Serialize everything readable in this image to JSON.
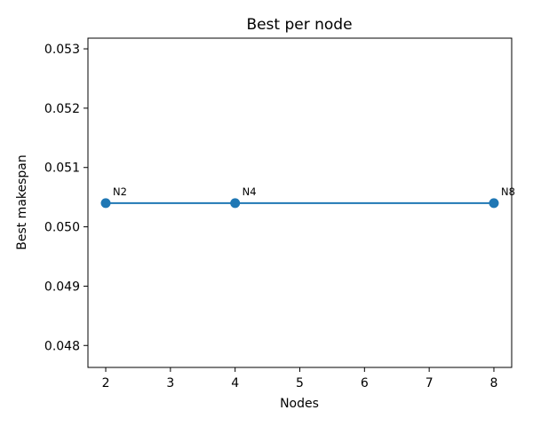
{
  "chart_data": {
    "type": "line",
    "title": "Best per node",
    "xlabel": "Nodes",
    "ylabel": "Best makespan",
    "xlim": [
      1.725,
      8.275
    ],
    "ylim": [
      0.04763,
      0.05318
    ],
    "xticks": [
      2,
      3,
      4,
      5,
      6,
      7,
      8
    ],
    "xtick_labels": [
      "2",
      "3",
      "4",
      "5",
      "6",
      "7",
      "8"
    ],
    "yticks": [
      0.048,
      0.049,
      0.05,
      0.051,
      0.052,
      0.053
    ],
    "ytick_labels": [
      "0.048",
      "0.049",
      "0.050",
      "0.051",
      "0.052",
      "0.053"
    ],
    "grid": false,
    "series": [
      {
        "x": [
          2,
          4,
          8
        ],
        "y": [
          0.0504,
          0.0504,
          0.0504
        ],
        "point_labels": [
          "N2",
          "N4",
          "N8"
        ],
        "color": "#1f77b4",
        "marker": "circle"
      }
    ]
  }
}
